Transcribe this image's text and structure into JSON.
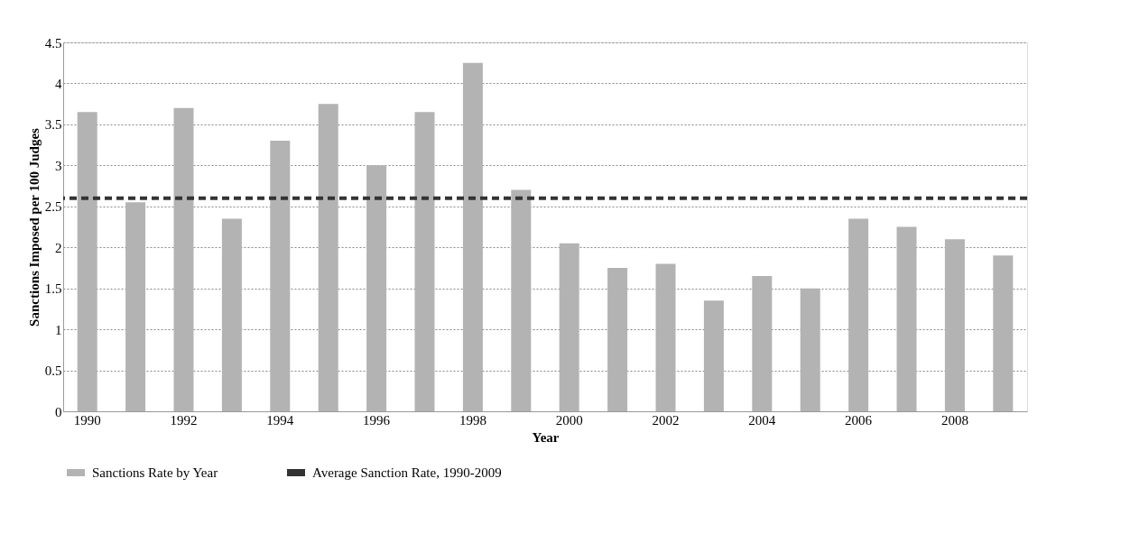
{
  "chart_data": {
    "type": "bar",
    "xlabel": "Year",
    "ylabel": "Sanctions Imposed per 100 Judges",
    "categories": [
      "1990",
      null,
      "1992",
      null,
      "1994",
      null,
      "1996",
      null,
      "1998",
      null,
      "2000",
      null,
      "2002",
      null,
      "2004",
      null,
      "2006",
      null,
      "2008",
      null
    ],
    "series": [
      {
        "name": "Sanctions Rate by Year",
        "color": "#b3b3b3",
        "values": [
          3.65,
          2.55,
          3.7,
          2.35,
          3.3,
          3.75,
          3.0,
          3.65,
          4.25,
          2.7,
          2.05,
          1.75,
          1.8,
          1.35,
          1.65,
          1.5,
          2.35,
          2.25,
          2.1,
          1.9
        ]
      }
    ],
    "ref_lines": [
      {
        "axis": "y",
        "value": 2.6,
        "label": "Average Sanction Rate, 1990-2009",
        "color": "#333333",
        "line_style": "dashed"
      }
    ],
    "ylim": [
      0,
      4.5
    ],
    "yticks": [
      0,
      0.5,
      1,
      1.5,
      2,
      2.5,
      3,
      3.5,
      4,
      4.5
    ],
    "grid": "y",
    "legend": "bottom"
  }
}
